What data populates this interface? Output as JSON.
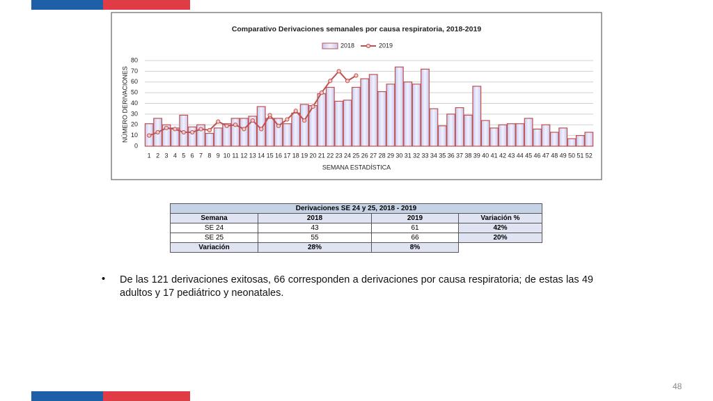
{
  "chart_data": {
    "type": "bar_line",
    "title": "Comparativo  Derivaciones  semanales  por causa  respiratoria,  2018-2019",
    "xlabel": "SEMANA ESTADÍSTICA",
    "ylabel": "NÚMERO DERIVACIONES",
    "categories": [
      "1",
      "2",
      "3",
      "4",
      "5",
      "6",
      "7",
      "8",
      "9",
      "10",
      "11",
      "12",
      "13",
      "14",
      "15",
      "16",
      "17",
      "18",
      "19",
      "20",
      "21",
      "22",
      "23",
      "24",
      "25",
      "26",
      "27",
      "28",
      "29",
      "30",
      "31",
      "32",
      "33",
      "34",
      "35",
      "36",
      "37",
      "38",
      "39",
      "40",
      "41",
      "42",
      "43",
      "44",
      "45",
      "46",
      "47",
      "48",
      "49",
      "50",
      "51",
      "52"
    ],
    "series": [
      {
        "name": "2018",
        "type": "bar",
        "color": "#c0504d",
        "values": [
          21,
          26,
          20,
          17,
          29,
          18,
          20,
          12,
          17,
          21,
          26,
          26,
          28,
          37,
          26,
          26,
          21,
          31,
          39,
          38,
          49,
          55,
          42,
          43,
          55,
          63,
          67,
          51,
          58,
          74,
          60,
          58,
          72,
          35,
          19,
          30,
          36,
          29,
          56,
          24,
          17,
          20,
          21,
          21,
          26,
          16,
          20,
          13,
          17,
          7,
          10,
          13
        ]
      },
      {
        "name": "2019",
        "type": "line",
        "color": "#c0504d",
        "values": [
          10,
          13,
          17,
          16,
          13,
          13,
          16,
          15,
          23,
          19,
          20,
          16,
          24,
          16,
          29,
          19,
          25,
          33,
          24,
          37,
          50,
          61,
          70,
          61,
          66,
          null,
          null,
          null,
          null,
          null,
          null,
          null,
          null,
          null,
          null,
          null,
          null,
          null,
          null,
          null,
          null,
          null,
          null,
          null,
          null,
          null,
          null,
          null,
          null,
          null,
          null,
          null
        ]
      }
    ],
    "ylim": [
      0,
      80
    ],
    "yticks": [
      0,
      10,
      20,
      30,
      40,
      50,
      60,
      70,
      80
    ],
    "grid": true,
    "legend": "top"
  },
  "table": {
    "title": "Derivaciones  SE 24 y 25, 2018 - 2019",
    "header": [
      "Semana",
      "2018",
      "2019",
      "Variación %"
    ],
    "rows": [
      [
        "SE 24",
        "43",
        "61",
        "42%"
      ],
      [
        "SE 25",
        "55",
        "66",
        "20%"
      ],
      [
        "Variación",
        "28%",
        "8%"
      ]
    ]
  },
  "bullet": "De las 121 derivaciones exitosas, 66 corresponden a derivaciones por causa respiratoria; de estas las 49 adultos y 17 pediátrico y neonatales.",
  "page_number": "48"
}
